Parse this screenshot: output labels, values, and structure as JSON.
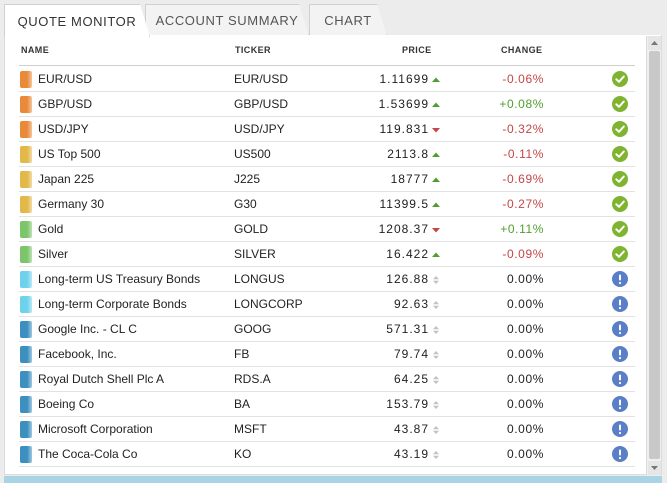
{
  "tabs": [
    {
      "label": "QUOTE MONITOR",
      "active": true
    },
    {
      "label": "ACCOUNT SUMMARY",
      "active": false
    },
    {
      "label": "CHART",
      "active": false
    }
  ],
  "table": {
    "headers": {
      "name": "NAME",
      "ticker": "TICKER",
      "price": "PRICE",
      "change": "CHANGE"
    },
    "rows": [
      {
        "name": "EUR/USD",
        "ticker": "EUR/USD",
        "price": "1.11699",
        "trend": "up",
        "change": "-0.06%",
        "change_dir": "down",
        "status": "ok",
        "swatch": "#e98a3a"
      },
      {
        "name": "GBP/USD",
        "ticker": "GBP/USD",
        "price": "1.53699",
        "trend": "up",
        "change": "+0.08%",
        "change_dir": "up",
        "status": "ok",
        "swatch": "#e98a3a"
      },
      {
        "name": "USD/JPY",
        "ticker": "USD/JPY",
        "price": "119.831",
        "trend": "down",
        "change": "-0.32%",
        "change_dir": "down",
        "status": "ok",
        "swatch": "#e98a3a"
      },
      {
        "name": "US Top 500",
        "ticker": "US500",
        "price": "2113.8",
        "trend": "up",
        "change": "-0.11%",
        "change_dir": "down",
        "status": "ok",
        "swatch": "#e3b84a"
      },
      {
        "name": "Japan 225",
        "ticker": "J225",
        "price": "18777",
        "trend": "up",
        "change": "-0.69%",
        "change_dir": "down",
        "status": "ok",
        "swatch": "#e3b84a"
      },
      {
        "name": "Germany 30",
        "ticker": "G30",
        "price": "11399.5",
        "trend": "up",
        "change": "-0.27%",
        "change_dir": "down",
        "status": "ok",
        "swatch": "#e3b84a"
      },
      {
        "name": "Gold",
        "ticker": "GOLD",
        "price": "1208.37",
        "trend": "down",
        "change": "+0.11%",
        "change_dir": "up",
        "status": "ok",
        "swatch": "#7cc56a"
      },
      {
        "name": "Silver",
        "ticker": "SILVER",
        "price": "16.422",
        "trend": "up",
        "change": "-0.09%",
        "change_dir": "down",
        "status": "ok",
        "swatch": "#7cc56a"
      },
      {
        "name": "Long-term US Treasury Bonds",
        "ticker": "LONGUS",
        "price": "126.88",
        "trend": "flat",
        "change": "0.00%",
        "change_dir": "flat",
        "status": "warn",
        "swatch": "#6fd2ec"
      },
      {
        "name": "Long-term Corporate Bonds",
        "ticker": "LONGCORP",
        "price": "92.63",
        "trend": "flat",
        "change": "0.00%",
        "change_dir": "flat",
        "status": "warn",
        "swatch": "#6fd2ec"
      },
      {
        "name": "Google Inc. - CL C",
        "ticker": "GOOG",
        "price": "571.31",
        "trend": "flat",
        "change": "0.00%",
        "change_dir": "flat",
        "status": "warn",
        "swatch": "#3d8fc0"
      },
      {
        "name": "Facebook, Inc.",
        "ticker": "FB",
        "price": "79.74",
        "trend": "flat",
        "change": "0.00%",
        "change_dir": "flat",
        "status": "warn",
        "swatch": "#3d8fc0"
      },
      {
        "name": "Royal Dutch Shell Plc A",
        "ticker": "RDS.A",
        "price": "64.25",
        "trend": "flat",
        "change": "0.00%",
        "change_dir": "flat",
        "status": "warn",
        "swatch": "#3d8fc0"
      },
      {
        "name": "Boeing Co",
        "ticker": "BA",
        "price": "153.79",
        "trend": "flat",
        "change": "0.00%",
        "change_dir": "flat",
        "status": "warn",
        "swatch": "#3d8fc0"
      },
      {
        "name": "Microsoft Corporation",
        "ticker": "MSFT",
        "price": "43.87",
        "trend": "flat",
        "change": "0.00%",
        "change_dir": "flat",
        "status": "warn",
        "swatch": "#3d8fc0"
      },
      {
        "name": "The Coca-Cola Co",
        "ticker": "KO",
        "price": "43.19",
        "trend": "flat",
        "change": "0.00%",
        "change_dir": "flat",
        "status": "warn",
        "swatch": "#3d8fc0"
      }
    ]
  },
  "colors": {
    "up": "#4f9f2f",
    "down": "#c64545",
    "ok": "#7fb431",
    "warn": "#5b7fc7",
    "accent_bar": "#a8d4e6"
  },
  "icons": {
    "ok": "check-circle-icon",
    "warn": "exclamation-circle-icon",
    "up": "triangle-up-icon",
    "down": "triangle-down-icon",
    "flat": "up-down-icon"
  }
}
